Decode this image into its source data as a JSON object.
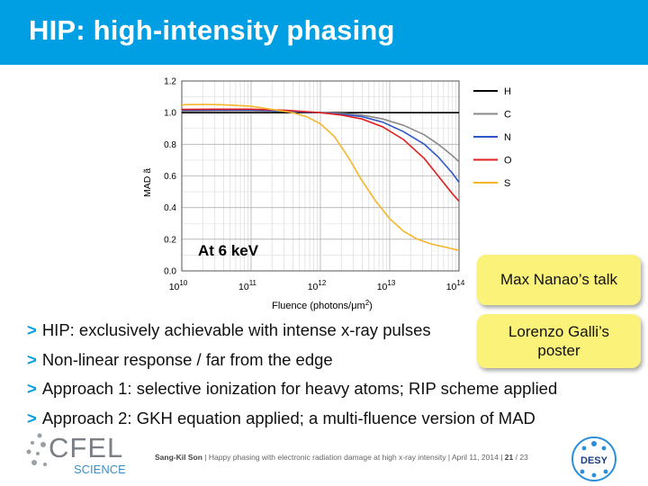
{
  "slide": {
    "title": "HIP: high-intensity phasing",
    "bullets": [
      "HIP: exclusively achievable with intense x-ray pulses",
      "Non-linear response / far from the edge",
      "Approach 1: selective ionization for heavy atoms; RIP scheme applied",
      "Approach 2: GKH equation applied; a multi-fluence version of MAD"
    ],
    "notes": [
      "Max Nanao’s talk",
      "Lorenzo Galli’s poster"
    ],
    "footer": {
      "author": "Sang-Kil Son",
      "text": "Happy phasing with electronic radiation damage at high x-ray intensity",
      "date": "April 11, 2014",
      "page": "21",
      "total": "23"
    },
    "logos": {
      "cfel": "CFEL",
      "cfel_sub": "SCIENCE",
      "desy": "DESY"
    },
    "colors": {
      "accent": "#009fe3",
      "note": "#fbf27a"
    }
  },
  "chart_data": {
    "type": "line",
    "xlabel_pre": "Fluence (photons/",
    "xlabel_mu": "μ",
    "xlabel_post": "m",
    "xlabel_sup": "2",
    "xlabel_close": ")",
    "ylabel": "MAD ã",
    "xscale": "log",
    "xlim": [
      10,
      14
    ],
    "ylim": [
      0,
      1.2
    ],
    "x_tick_base": "10",
    "x_ticks": [
      10,
      11,
      12,
      13,
      14
    ],
    "y_ticks": [
      "0.0",
      "0.2",
      "0.4",
      "0.6",
      "0.8",
      "1.0",
      "1.2"
    ],
    "annotation": "At 6 keV",
    "grid": true,
    "legend_position": "right",
    "series": [
      {
        "name": "H",
        "color": "#000000",
        "x": [
          10,
          11,
          12,
          13,
          14
        ],
        "y": [
          1.0,
          1.0,
          1.0,
          1.0,
          1.0
        ]
      },
      {
        "name": "C",
        "color": "#8a8a8a",
        "x": [
          10,
          10.5,
          11,
          11.5,
          12,
          12.3,
          12.6,
          12.9,
          13.2,
          13.5,
          13.7,
          13.9,
          14
        ],
        "y": [
          1.01,
          1.012,
          1.012,
          1.008,
          1.0,
          0.995,
          0.985,
          0.96,
          0.92,
          0.86,
          0.8,
          0.73,
          0.69
        ]
      },
      {
        "name": "N",
        "color": "#2e56c9",
        "x": [
          10,
          10.5,
          11,
          11.5,
          12,
          12.3,
          12.6,
          12.9,
          13.2,
          13.5,
          13.7,
          13.9,
          14
        ],
        "y": [
          1.015,
          1.017,
          1.017,
          1.01,
          1.0,
          0.99,
          0.975,
          0.94,
          0.88,
          0.8,
          0.72,
          0.62,
          0.56
        ]
      },
      {
        "name": "O",
        "color": "#e02020",
        "x": [
          10,
          10.5,
          11,
          11.5,
          12,
          12.3,
          12.6,
          12.9,
          13.2,
          13.5,
          13.7,
          13.9,
          14
        ],
        "y": [
          1.02,
          1.022,
          1.022,
          1.015,
          1.0,
          0.985,
          0.96,
          0.91,
          0.83,
          0.71,
          0.6,
          0.49,
          0.44
        ]
      },
      {
        "name": "S",
        "color": "#f6b62b",
        "x": [
          10,
          10.3,
          10.6,
          11,
          11.3,
          11.6,
          11.8,
          12,
          12.2,
          12.4,
          12.6,
          12.8,
          13,
          13.2,
          13.4,
          13.6,
          13.8,
          14
        ],
        "y": [
          1.05,
          1.052,
          1.05,
          1.04,
          1.02,
          1.0,
          0.975,
          0.93,
          0.85,
          0.72,
          0.57,
          0.44,
          0.33,
          0.25,
          0.2,
          0.17,
          0.15,
          0.13
        ]
      }
    ]
  }
}
